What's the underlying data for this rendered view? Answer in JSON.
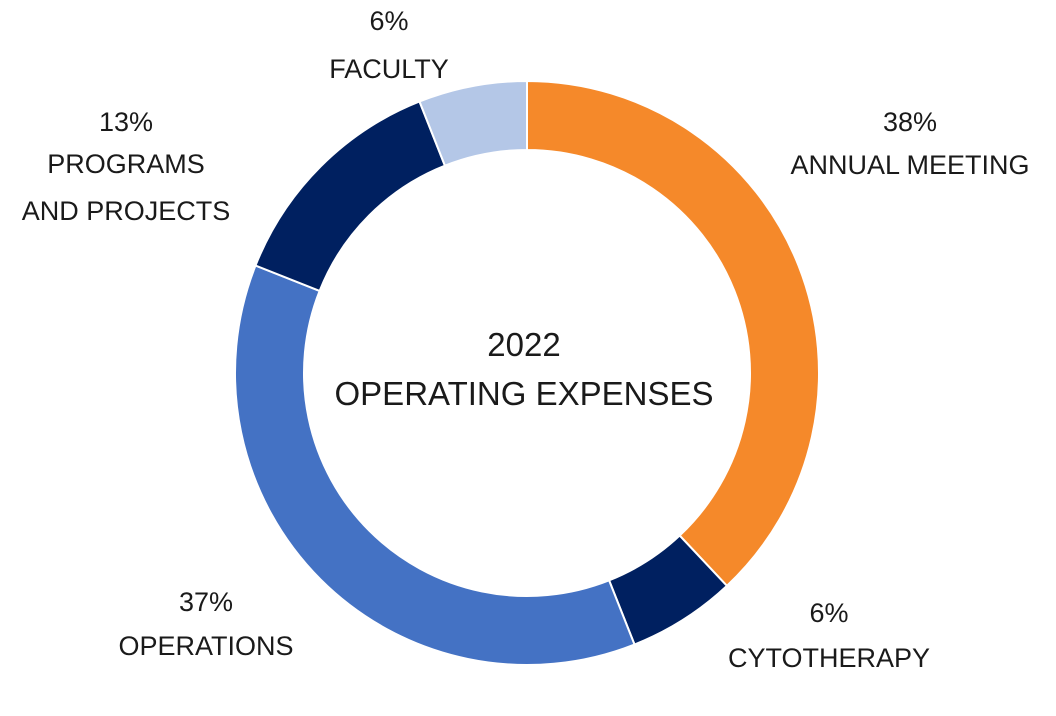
{
  "chart_data": {
    "type": "pie",
    "variant": "donut",
    "center_title_line1": "2022",
    "center_title_line2": "OPERATING EXPENSES",
    "slices": [
      {
        "name": "ANNUAL MEETING",
        "value": 38,
        "label": "38%",
        "color": "#F5892A"
      },
      {
        "name": "CYTOTHERAPY",
        "value": 6,
        "label": "6%",
        "color": "#002060"
      },
      {
        "name": "OPERATIONS",
        "value": 37,
        "label": "37%",
        "color": "#4472C4"
      },
      {
        "name": "PROGRAMS AND PROJECTS",
        "value": 13,
        "label": "13%",
        "color": "#002060"
      },
      {
        "name": "FACULTY",
        "value": 6,
        "label": "6%",
        "color": "#B4C7E7"
      }
    ],
    "legend": "none"
  }
}
